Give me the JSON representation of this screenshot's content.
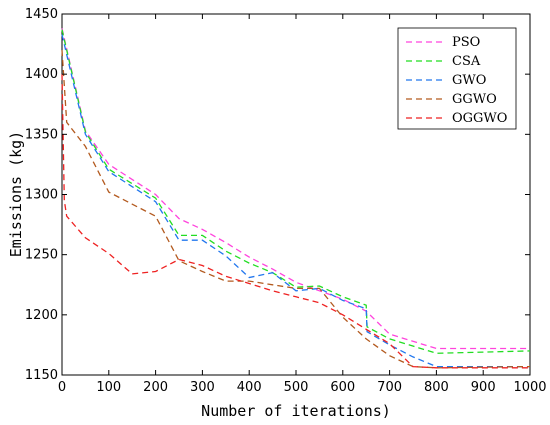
{
  "chart_data": {
    "type": "line",
    "xlabel": "Number of iterations)",
    "ylabel": "Emissions (kg)",
    "xlim": [
      0,
      1000
    ],
    "ylim": [
      1150,
      1450
    ],
    "xticks": [
      0,
      100,
      200,
      300,
      400,
      500,
      600,
      700,
      800,
      900,
      1000
    ],
    "yticks": [
      1150,
      1200,
      1250,
      1300,
      1350,
      1400,
      1450
    ],
    "grid": false,
    "legend_position": "top-right",
    "series": [
      {
        "name": "PSO",
        "color": "#ff44dd",
        "x": [
          0,
          50,
          100,
          200,
          250,
          300,
          350,
          400,
          450,
          500,
          550,
          600,
          650,
          700,
          800,
          1000
        ],
        "y": [
          1438,
          1353,
          1325,
          1300,
          1280,
          1271,
          1260,
          1248,
          1238,
          1227,
          1220,
          1213,
          1203,
          1184,
          1172,
          1172
        ]
      },
      {
        "name": "CSA",
        "color": "#22dd22",
        "x": [
          0,
          50,
          100,
          200,
          250,
          300,
          350,
          400,
          450,
          500,
          550,
          600,
          650,
          652,
          700,
          800,
          1000
        ],
        "y": [
          1437,
          1352,
          1321,
          1297,
          1266,
          1266,
          1253,
          1243,
          1235,
          1223,
          1224,
          1215,
          1208,
          1190,
          1180,
          1168,
          1170
        ]
      },
      {
        "name": "GWO",
        "color": "#2277ee",
        "x": [
          0,
          50,
          100,
          200,
          250,
          300,
          350,
          400,
          450,
          500,
          550,
          600,
          650,
          652,
          700,
          750,
          800,
          1000
        ],
        "y": [
          1433,
          1350,
          1319,
          1294,
          1262,
          1262,
          1249,
          1231,
          1235,
          1220,
          1222,
          1212,
          1205,
          1186,
          1175,
          1165,
          1157,
          1157
        ]
      },
      {
        "name": "GGWO",
        "color": "#b35a1f",
        "x": [
          0,
          10,
          50,
          100,
          200,
          250,
          300,
          350,
          400,
          450,
          500,
          550,
          600,
          650,
          700,
          750,
          800,
          1000
        ],
        "y": [
          1420,
          1360,
          1340,
          1302,
          1282,
          1245,
          1236,
          1228,
          1228,
          1225,
          1222,
          1222,
          1198,
          1180,
          1166,
          1157,
          1156,
          1157
        ]
      },
      {
        "name": "OGGWO",
        "color": "#ee2222",
        "x": [
          0,
          5,
          10,
          50,
          100,
          150,
          200,
          250,
          300,
          350,
          400,
          450,
          500,
          550,
          600,
          650,
          700,
          750,
          800,
          1000
        ],
        "y": [
          1400,
          1295,
          1282,
          1264,
          1251,
          1234,
          1236,
          1246,
          1241,
          1232,
          1226,
          1220,
          1215,
          1210,
          1200,
          1188,
          1176,
          1157,
          1156,
          1156
        ]
      }
    ]
  }
}
